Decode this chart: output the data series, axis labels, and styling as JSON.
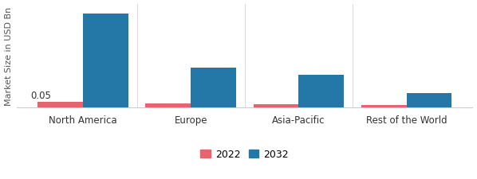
{
  "categories": [
    "North America",
    "Europe",
    "Asia-Pacific",
    "Rest of the World"
  ],
  "values_2022": [
    0.05,
    0.04,
    0.03,
    0.02
  ],
  "values_2032": [
    0.95,
    0.4,
    0.33,
    0.14
  ],
  "color_2022": "#e8636e",
  "color_2032": "#2378a8",
  "ylabel": "Market Size in USD Bn",
  "annotation_text": "0.05",
  "bar_width": 0.42,
  "legend_labels": [
    "2022",
    "2032"
  ],
  "background_color": "#ffffff",
  "ylim": [
    0,
    1.05
  ],
  "legend_marker_size": 10
}
